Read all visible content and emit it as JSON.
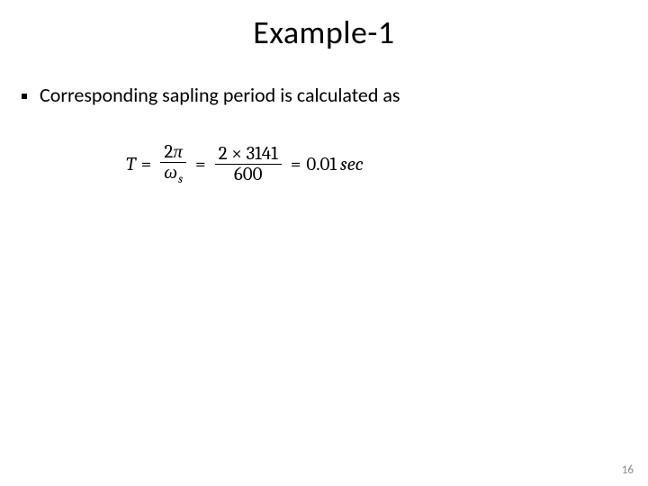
{
  "colors": {
    "background": "#ffffff",
    "text": "#000000",
    "pagenum": "#8a8a8a"
  },
  "title": "Example-1",
  "bullet": "Corresponding sapling period is calculated as",
  "equation": {
    "lhs_var": "T",
    "eq": "=",
    "frac1_num_coeff": "2",
    "frac1_num_sym": "π",
    "frac1_den_sym": "ω",
    "frac1_den_sub": "s",
    "frac2_num": "2 × 3141",
    "frac2_den": "600",
    "result_value": "0.01",
    "result_unit": "sec"
  },
  "page_number": "16"
}
